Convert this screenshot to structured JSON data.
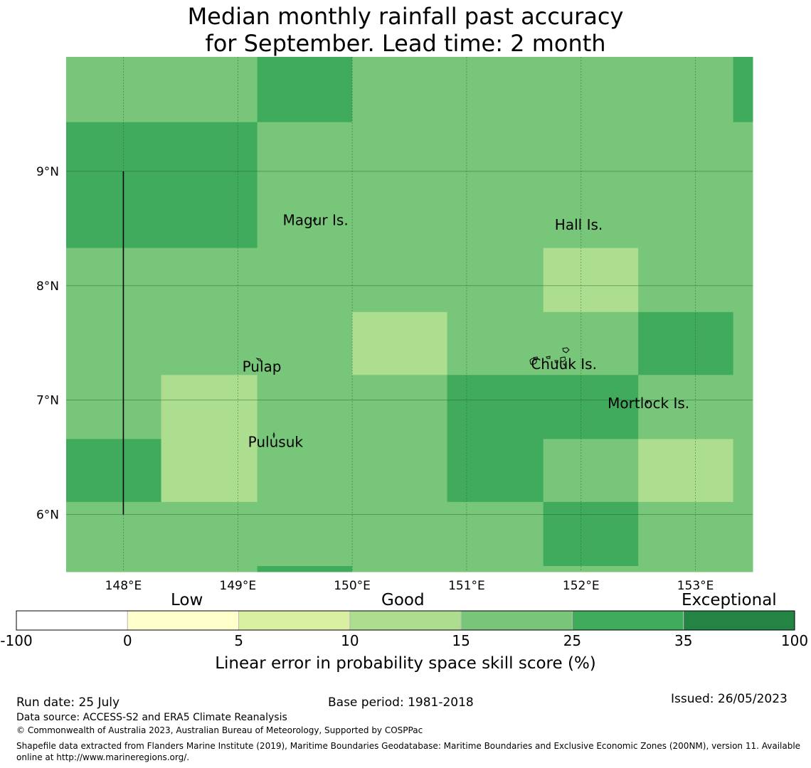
{
  "title": {
    "line1": "Median monthly rainfall past accuracy",
    "line2": "for September. Lead time: 2 month"
  },
  "map": {
    "lon_range": [
      147.5,
      153.5
    ],
    "lat_range": [
      5.5,
      10.0
    ],
    "lon_ticks": [
      {
        "value": 148,
        "label": "148°E"
      },
      {
        "value": 149,
        "label": "149°E"
      },
      {
        "value": 150,
        "label": "150°E"
      },
      {
        "value": 151,
        "label": "151°E"
      },
      {
        "value": 152,
        "label": "152°E"
      },
      {
        "value": 153,
        "label": "153°E"
      }
    ],
    "lat_ticks": [
      {
        "value": 9,
        "label": "9°N"
      },
      {
        "value": 8,
        "label": "8°N"
      },
      {
        "value": 7,
        "label": "7°N"
      },
      {
        "value": 6,
        "label": "6°N"
      }
    ],
    "grid": true,
    "place_labels": [
      {
        "name": "Magur Is.",
        "lon": 149.68,
        "lat": 8.53
      },
      {
        "name": "Hall Is.",
        "lon": 151.98,
        "lat": 8.49
      },
      {
        "name": "Pulap",
        "lon": 149.21,
        "lat": 7.25
      },
      {
        "name": "Chuuk Is.",
        "lon": 151.85,
        "lat": 7.27
      },
      {
        "name": "Mortlock Is.",
        "lon": 152.59,
        "lat": 6.93
      },
      {
        "name": "Pulusuk",
        "lon": 149.33,
        "lat": 6.59
      }
    ],
    "boundary_line": {
      "lon": 148.0,
      "lat_from": 6.0,
      "lat_to": 9.0
    },
    "colors": {
      "cat_15_25": "#78c679",
      "cat_25_35": "#41ab5d",
      "cat_10_15": "#addd8e"
    },
    "grid_cells": [
      {
        "lon": [
          147.5,
          149.17
        ],
        "lat": [
          9.43,
          10.0
        ],
        "category": "cat_15_25"
      },
      {
        "lon": [
          149.17,
          150.0
        ],
        "lat": [
          9.43,
          10.0
        ],
        "category": "cat_25_35"
      },
      {
        "lon": [
          150.0,
          153.33
        ],
        "lat": [
          9.43,
          10.0
        ],
        "category": "cat_15_25"
      },
      {
        "lon": [
          153.33,
          153.5
        ],
        "lat": [
          9.43,
          10.0
        ],
        "category": "cat_25_35"
      },
      {
        "lon": [
          147.5,
          149.17
        ],
        "lat": [
          8.33,
          9.43
        ],
        "category": "cat_25_35"
      },
      {
        "lon": [
          149.17,
          153.5
        ],
        "lat": [
          8.33,
          9.43
        ],
        "category": "cat_15_25"
      },
      {
        "lon": [
          147.5,
          151.67
        ],
        "lat": [
          7.77,
          8.33
        ],
        "category": "cat_15_25"
      },
      {
        "lon": [
          151.67,
          152.5
        ],
        "lat": [
          7.77,
          8.33
        ],
        "category": "cat_10_15"
      },
      {
        "lon": [
          152.5,
          153.5
        ],
        "lat": [
          7.77,
          8.33
        ],
        "category": "cat_15_25"
      },
      {
        "lon": [
          147.5,
          150.0
        ],
        "lat": [
          7.22,
          7.77
        ],
        "category": "cat_15_25"
      },
      {
        "lon": [
          150.0,
          150.83
        ],
        "lat": [
          7.22,
          7.77
        ],
        "category": "cat_10_15"
      },
      {
        "lon": [
          150.83,
          152.5
        ],
        "lat": [
          7.22,
          7.77
        ],
        "category": "cat_15_25"
      },
      {
        "lon": [
          152.5,
          153.33
        ],
        "lat": [
          7.22,
          7.77
        ],
        "category": "cat_25_35"
      },
      {
        "lon": [
          153.33,
          153.5
        ],
        "lat": [
          7.22,
          7.77
        ],
        "category": "cat_15_25"
      },
      {
        "lon": [
          147.5,
          148.33
        ],
        "lat": [
          6.66,
          7.22
        ],
        "category": "cat_15_25"
      },
      {
        "lon": [
          148.33,
          149.17
        ],
        "lat": [
          6.66,
          7.22
        ],
        "category": "cat_10_15"
      },
      {
        "lon": [
          149.17,
          150.83
        ],
        "lat": [
          6.66,
          7.22
        ],
        "category": "cat_15_25"
      },
      {
        "lon": [
          150.83,
          152.5
        ],
        "lat": [
          6.66,
          7.22
        ],
        "category": "cat_25_35"
      },
      {
        "lon": [
          152.5,
          153.5
        ],
        "lat": [
          6.66,
          7.22
        ],
        "category": "cat_15_25"
      },
      {
        "lon": [
          147.5,
          148.33
        ],
        "lat": [
          6.11,
          6.66
        ],
        "category": "cat_25_35"
      },
      {
        "lon": [
          148.33,
          149.17
        ],
        "lat": [
          6.11,
          6.66
        ],
        "category": "cat_10_15"
      },
      {
        "lon": [
          149.17,
          150.83
        ],
        "lat": [
          6.11,
          6.66
        ],
        "category": "cat_15_25"
      },
      {
        "lon": [
          150.83,
          151.67
        ],
        "lat": [
          6.11,
          6.66
        ],
        "category": "cat_25_35"
      },
      {
        "lon": [
          151.67,
          152.5
        ],
        "lat": [
          6.11,
          6.66
        ],
        "category": "cat_15_25"
      },
      {
        "lon": [
          152.5,
          153.33
        ],
        "lat": [
          6.11,
          6.66
        ],
        "category": "cat_10_15"
      },
      {
        "lon": [
          153.33,
          153.5
        ],
        "lat": [
          6.11,
          6.66
        ],
        "category": "cat_15_25"
      },
      {
        "lon": [
          147.5,
          151.67
        ],
        "lat": [
          5.55,
          6.11
        ],
        "category": "cat_15_25"
      },
      {
        "lon": [
          151.67,
          152.5
        ],
        "lat": [
          5.55,
          6.11
        ],
        "category": "cat_25_35"
      },
      {
        "lon": [
          152.5,
          153.5
        ],
        "lat": [
          5.55,
          6.11
        ],
        "category": "cat_15_25"
      },
      {
        "lon": [
          147.5,
          149.17
        ],
        "lat": [
          5.5,
          5.55
        ],
        "category": "cat_15_25"
      },
      {
        "lon": [
          149.17,
          150.0
        ],
        "lat": [
          5.5,
          5.55
        ],
        "category": "cat_25_35"
      },
      {
        "lon": [
          150.0,
          153.5
        ],
        "lat": [
          5.5,
          5.55
        ],
        "category": "cat_15_25"
      }
    ]
  },
  "colorbar": {
    "categories": [
      {
        "label": "Low",
        "position": "left"
      },
      {
        "label": "Good",
        "position": "center"
      },
      {
        "label": "Exceptional",
        "position": "right"
      }
    ],
    "bins": [
      {
        "from": "-100",
        "to": "0",
        "color": "#ffffff"
      },
      {
        "from": "0",
        "to": "5",
        "color": "#ffffcc"
      },
      {
        "from": "5",
        "to": "10",
        "color": "#d9f0a3"
      },
      {
        "from": "10",
        "to": "15",
        "color": "#addd8e"
      },
      {
        "from": "15",
        "to": "25",
        "color": "#78c679"
      },
      {
        "from": "25",
        "to": "35",
        "color": "#41ab5d"
      },
      {
        "from": "35",
        "to": "100",
        "color": "#238443"
      }
    ],
    "tick_labels": [
      "-100",
      "0",
      "5",
      "10",
      "15",
      "25",
      "35",
      "100"
    ],
    "label": "Linear error in probability space skill score (%)"
  },
  "footer": {
    "run_date": "Run date: 25 July",
    "base_period": "Base period: 1981-2018",
    "issued": "Issued: 26/05/2023",
    "data_source": "Data source: ACCESS-S2 and ERA5 Climate Reanalysis",
    "copyright": "© Commonwealth of Australia 2023, Australian Bureau of Meteorology, Supported by COSPPac",
    "shapefile": "Shapefile data extracted from Flanders Marine Institute (2019), Maritime Boundaries Geodatabase: Maritime Boundaries and Exclusive Economic Zones (200NM), version 11. Available online at http://www.marineregions.org/."
  }
}
